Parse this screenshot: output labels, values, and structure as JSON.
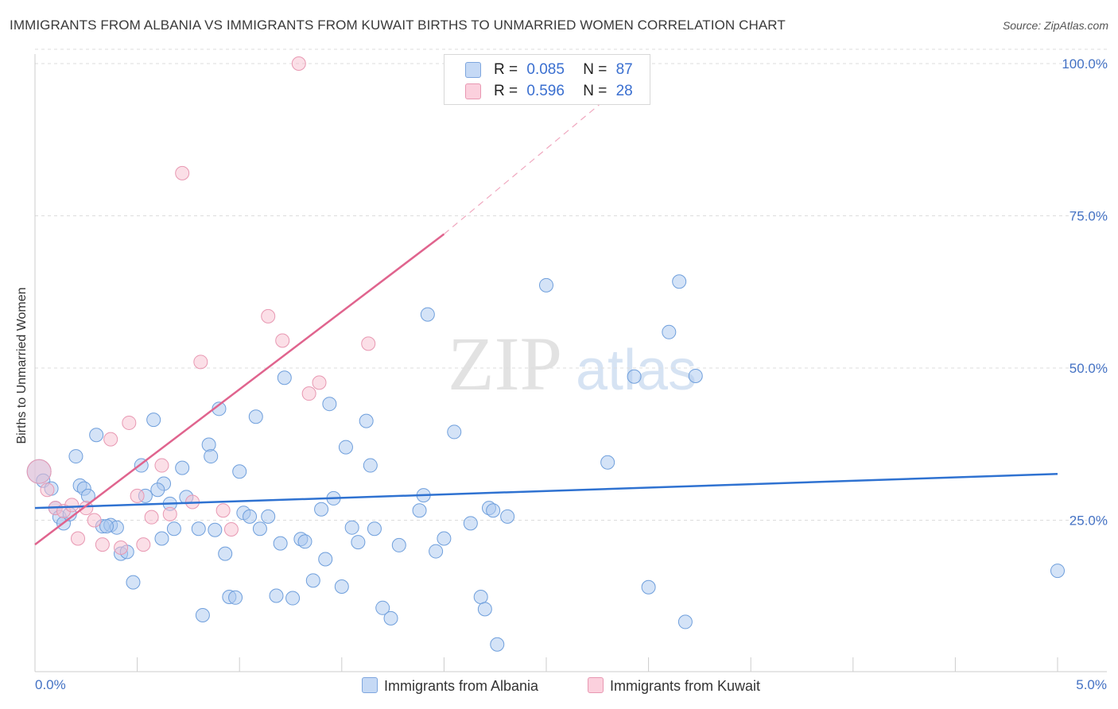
{
  "title": "IMMIGRANTS FROM ALBANIA VS IMMIGRANTS FROM KUWAIT BIRTHS TO UNMARRIED WOMEN CORRELATION CHART",
  "source": "Source: ZipAtlas.com",
  "watermark": {
    "zip": "ZIP",
    "atlas": "atlas"
  },
  "colors": {
    "albania": "#a9c7f0",
    "albania_edge": "#6f9fdc",
    "albania_line": "#2f72d1",
    "kuwait": "#f7bfd0",
    "kuwait_edge": "#e898b2",
    "kuwait_line": "#e0648e",
    "axis_text": "#4472c4",
    "grid": "#dddddd"
  },
  "legend_top": {
    "r_label": "R =",
    "n_label": "N =",
    "albania": {
      "r": "0.085",
      "n": "87"
    },
    "kuwait": {
      "r": "0.596",
      "n": "28"
    }
  },
  "legend_bottom": {
    "albania": "Immigrants from Albania",
    "kuwait": "Immigrants from Kuwait"
  },
  "chart_data": {
    "type": "scatter",
    "title": "IMMIGRANTS FROM ALBANIA VS IMMIGRANTS FROM KUWAIT BIRTHS TO UNMARRIED WOMEN CORRELATION CHART",
    "xlabel": "",
    "ylabel": "Births to Unmarried Women",
    "xlim": [
      0,
      5.0
    ],
    "ylim": [
      0,
      105
    ],
    "x_tick_labels": [
      "0.0%",
      "5.0%"
    ],
    "y_ticks": [
      25,
      50,
      75,
      100
    ],
    "y_tick_labels": [
      "25.0%",
      "50.0%",
      "75.0%",
      "100.0%"
    ],
    "grid": "horizontal dashed",
    "legend_position": "top-center",
    "series": [
      {
        "name": "Immigrants from Albania",
        "r": 0.085,
        "n": 87,
        "trend": {
          "x0": 0.0,
          "y0": 27.0,
          "x1": 5.0,
          "y1": 32.6
        },
        "points": [
          [
            0.02,
            33.0
          ],
          [
            0.04,
            31.5
          ],
          [
            0.08,
            30.2
          ],
          [
            0.1,
            27.0
          ],
          [
            0.12,
            25.5
          ],
          [
            0.14,
            24.5
          ],
          [
            0.17,
            26.0
          ],
          [
            0.2,
            35.5
          ],
          [
            0.22,
            30.7
          ],
          [
            0.24,
            30.2
          ],
          [
            0.26,
            29.0
          ],
          [
            0.3,
            39.0
          ],
          [
            0.33,
            24.0
          ],
          [
            0.37,
            24.2
          ],
          [
            0.4,
            23.8
          ],
          [
            0.42,
            19.5
          ],
          [
            0.45,
            19.8
          ],
          [
            0.48,
            14.8
          ],
          [
            0.52,
            34.0
          ],
          [
            0.54,
            29.0
          ],
          [
            0.58,
            41.5
          ],
          [
            0.62,
            22.0
          ],
          [
            0.63,
            31.0
          ],
          [
            0.66,
            27.7
          ],
          [
            0.68,
            23.6
          ],
          [
            0.72,
            33.6
          ],
          [
            0.74,
            28.8
          ],
          [
            0.8,
            23.6
          ],
          [
            0.82,
            9.4
          ],
          [
            0.85,
            37.4
          ],
          [
            0.86,
            35.5
          ],
          [
            0.88,
            23.4
          ],
          [
            0.9,
            43.3
          ],
          [
            0.93,
            19.5
          ],
          [
            0.95,
            12.4
          ],
          [
            0.98,
            12.3
          ],
          [
            1.0,
            33.0
          ],
          [
            1.02,
            26.2
          ],
          [
            1.05,
            25.6
          ],
          [
            1.08,
            42.0
          ],
          [
            1.1,
            23.6
          ],
          [
            1.14,
            25.6
          ],
          [
            1.18,
            12.6
          ],
          [
            1.2,
            21.2
          ],
          [
            1.22,
            48.4
          ],
          [
            1.26,
            12.2
          ],
          [
            1.3,
            21.9
          ],
          [
            1.32,
            21.5
          ],
          [
            1.36,
            15.1
          ],
          [
            1.4,
            26.8
          ],
          [
            1.42,
            18.6
          ],
          [
            1.44,
            44.1
          ],
          [
            1.46,
            28.6
          ],
          [
            1.5,
            14.1
          ],
          [
            1.52,
            37.0
          ],
          [
            1.55,
            23.8
          ],
          [
            1.58,
            21.4
          ],
          [
            1.62,
            41.3
          ],
          [
            1.64,
            34.0
          ],
          [
            1.66,
            23.6
          ],
          [
            1.7,
            10.6
          ],
          [
            1.74,
            8.9
          ],
          [
            1.78,
            20.9
          ],
          [
            1.88,
            26.6
          ],
          [
            1.9,
            29.1
          ],
          [
            1.92,
            58.8
          ],
          [
            1.96,
            19.9
          ],
          [
            2.0,
            22.0
          ],
          [
            2.05,
            39.5
          ],
          [
            2.13,
            24.5
          ],
          [
            2.18,
            12.4
          ],
          [
            2.2,
            10.4
          ],
          [
            2.22,
            27.0
          ],
          [
            2.24,
            26.6
          ],
          [
            2.26,
            4.6
          ],
          [
            2.31,
            25.6
          ],
          [
            2.5,
            63.6
          ],
          [
            2.8,
            34.5
          ],
          [
            2.93,
            48.6
          ],
          [
            3.0,
            14.0
          ],
          [
            3.1,
            55.9
          ],
          [
            3.15,
            64.2
          ],
          [
            3.18,
            8.3
          ],
          [
            3.23,
            48.7
          ],
          [
            5.0,
            16.7
          ],
          [
            0.35,
            24.0
          ],
          [
            0.6,
            30.0
          ]
        ]
      },
      {
        "name": "Immigrants from Kuwait",
        "r": 0.596,
        "n": 28,
        "trend": {
          "x0": 0.0,
          "y0": 21.0,
          "x1": 2.0,
          "y1": 72.0,
          "dash_to_x": 3.0,
          "dash_to_y": 100.0
        },
        "points": [
          [
            0.02,
            33.0
          ],
          [
            0.06,
            30.0
          ],
          [
            0.1,
            27.0
          ],
          [
            0.14,
            26.5
          ],
          [
            0.18,
            27.5
          ],
          [
            0.21,
            22.0
          ],
          [
            0.25,
            27.0
          ],
          [
            0.29,
            25.0
          ],
          [
            0.33,
            21.0
          ],
          [
            0.37,
            38.3
          ],
          [
            0.42,
            20.5
          ],
          [
            0.46,
            41.0
          ],
          [
            0.5,
            29.0
          ],
          [
            0.53,
            21.0
          ],
          [
            0.57,
            25.5
          ],
          [
            0.62,
            34.0
          ],
          [
            0.66,
            26.0
          ],
          [
            0.72,
            82.0
          ],
          [
            0.77,
            28.0
          ],
          [
            0.81,
            51.0
          ],
          [
            0.92,
            26.6
          ],
          [
            0.96,
            23.5
          ],
          [
            1.14,
            58.5
          ],
          [
            1.21,
            54.5
          ],
          [
            1.29,
            100.0
          ],
          [
            1.34,
            45.8
          ],
          [
            1.39,
            47.6
          ],
          [
            1.63,
            54.0
          ]
        ]
      }
    ]
  }
}
